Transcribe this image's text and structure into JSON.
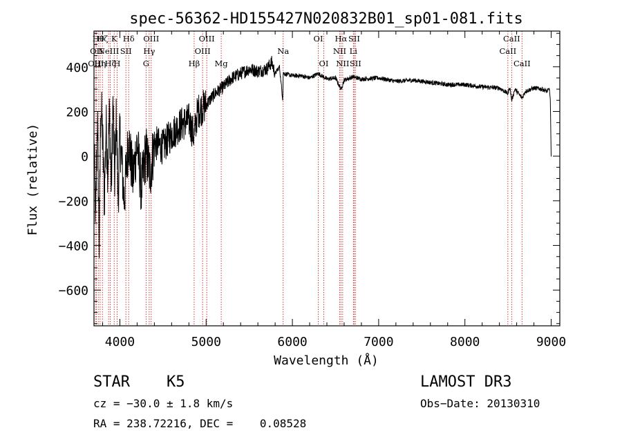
{
  "chart_data": {
    "type": "line",
    "title": "spec-56362-HD155427N020832B01_sp01-081.fits",
    "xlabel": "Wavelength (Å)",
    "ylabel": "Flux (relative)",
    "xlim": [
      3700,
      9100
    ],
    "ylim": [
      -760,
      560
    ],
    "xticks": [
      4000,
      5000,
      6000,
      7000,
      8000,
      9000
    ],
    "yticks": [
      -600,
      -400,
      -200,
      0,
      200,
      400
    ],
    "x_minor_step": 200,
    "y_minor_step": 50,
    "series": [
      {
        "name": "spectrum",
        "x": [
          3700,
          3720,
          3740,
          3760,
          3780,
          3800,
          3820,
          3840,
          3860,
          3880,
          3900,
          3920,
          3940,
          3960,
          3980,
          4000,
          4050,
          4100,
          4150,
          4200,
          4250,
          4300,
          4350,
          4400,
          4500,
          4600,
          4700,
          4800,
          4860,
          4900,
          5000,
          5100,
          5200,
          5300,
          5400,
          5500,
          5600,
          5700,
          5760,
          5800,
          5850,
          5889,
          5893,
          5900,
          6000,
          6100,
          6200,
          6300,
          6400,
          6500,
          6563,
          6600,
          6700,
          6800,
          7000,
          7200,
          7400,
          7600,
          7800,
          8000,
          8200,
          8400,
          8498,
          8520,
          8542,
          8580,
          8662,
          8700,
          8800,
          8900,
          8950,
          8980,
          8990,
          9000
        ],
        "y": [
          60,
          -300,
          200,
          -400,
          250,
          80,
          -200,
          140,
          -60,
          200,
          -150,
          230,
          -100,
          180,
          -200,
          100,
          -200,
          80,
          -100,
          60,
          -150,
          20,
          -80,
          60,
          40,
          100,
          140,
          160,
          90,
          200,
          230,
          280,
          310,
          350,
          370,
          390,
          380,
          390,
          420,
          370,
          400,
          250,
          380,
          370,
          360,
          360,
          350,
          370,
          345,
          350,
          300,
          340,
          355,
          345,
          350,
          335,
          340,
          330,
          320,
          320,
          310,
          305,
          280,
          310,
          250,
          300,
          260,
          290,
          305,
          300,
          290,
          300,
          250,
          0
        ]
      }
    ],
    "spectral_lines": [
      {
        "wl": 3722,
        "label": "OIII",
        "row": 2
      },
      {
        "wl": 3727,
        "label": "OII",
        "row": 1
      },
      {
        "wl": 3750,
        "label": "Hθ",
        "row": 0
      },
      {
        "wl": 3771,
        "label": "Hη",
        "row": 2
      },
      {
        "wl": 3798,
        "label": "Hζ",
        "row": 0
      },
      {
        "wl": 3869,
        "label": "NeIII",
        "row": 1
      },
      {
        "wl": 3889,
        "label": "Hζ",
        "row": 2
      },
      {
        "wl": 3934,
        "label": "K",
        "row": 0
      },
      {
        "wl": 3968,
        "label": "H",
        "row": 2
      },
      {
        "wl": 4070,
        "label": "SII",
        "row": 1
      },
      {
        "wl": 4102,
        "label": "Hδ",
        "row": 0
      },
      {
        "wl": 4304,
        "label": "G",
        "row": 2
      },
      {
        "wl": 4340,
        "label": "Hγ",
        "row": 1
      },
      {
        "wl": 4363,
        "label": "OIII",
        "row": 0
      },
      {
        "wl": 4861,
        "label": "Hβ",
        "row": 2
      },
      {
        "wl": 4959,
        "label": "OIII",
        "row": 1
      },
      {
        "wl": 5007,
        "label": "OIII",
        "row": 0
      },
      {
        "wl": 5175,
        "label": "Mg",
        "row": 2
      },
      {
        "wl": 5893,
        "label": "Na",
        "row": 1
      },
      {
        "wl": 6300,
        "label": "OI",
        "row": 0
      },
      {
        "wl": 6364,
        "label": "OI",
        "row": 2
      },
      {
        "wl": 6548,
        "label": "NII",
        "row": 1
      },
      {
        "wl": 6563,
        "label": "Hα",
        "row": 0
      },
      {
        "wl": 6583,
        "label": "NII",
        "row": 2
      },
      {
        "wl": 6707,
        "label": "Li",
        "row": 1
      },
      {
        "wl": 6716,
        "label": "SII",
        "row": 0
      },
      {
        "wl": 6731,
        "label": "SII",
        "row": 2
      },
      {
        "wl": 8498,
        "label": "CaII",
        "row": 1
      },
      {
        "wl": 8542,
        "label": "CaII",
        "row": 0
      },
      {
        "wl": 8662,
        "label": "CaII",
        "row": 2
      }
    ]
  },
  "info": {
    "class": "STAR",
    "subclass": "K5",
    "survey": "LAMOST DR3",
    "cz": "cz = −30.0 ± 1.8 km/s",
    "obs_date": "Obs−Date: 20130310",
    "coords": "RA = 238.72216, DEC =    0.08528"
  },
  "colors": {
    "axis": "#000000",
    "spectrum": "#000000",
    "line_marker": "#cc2222"
  }
}
